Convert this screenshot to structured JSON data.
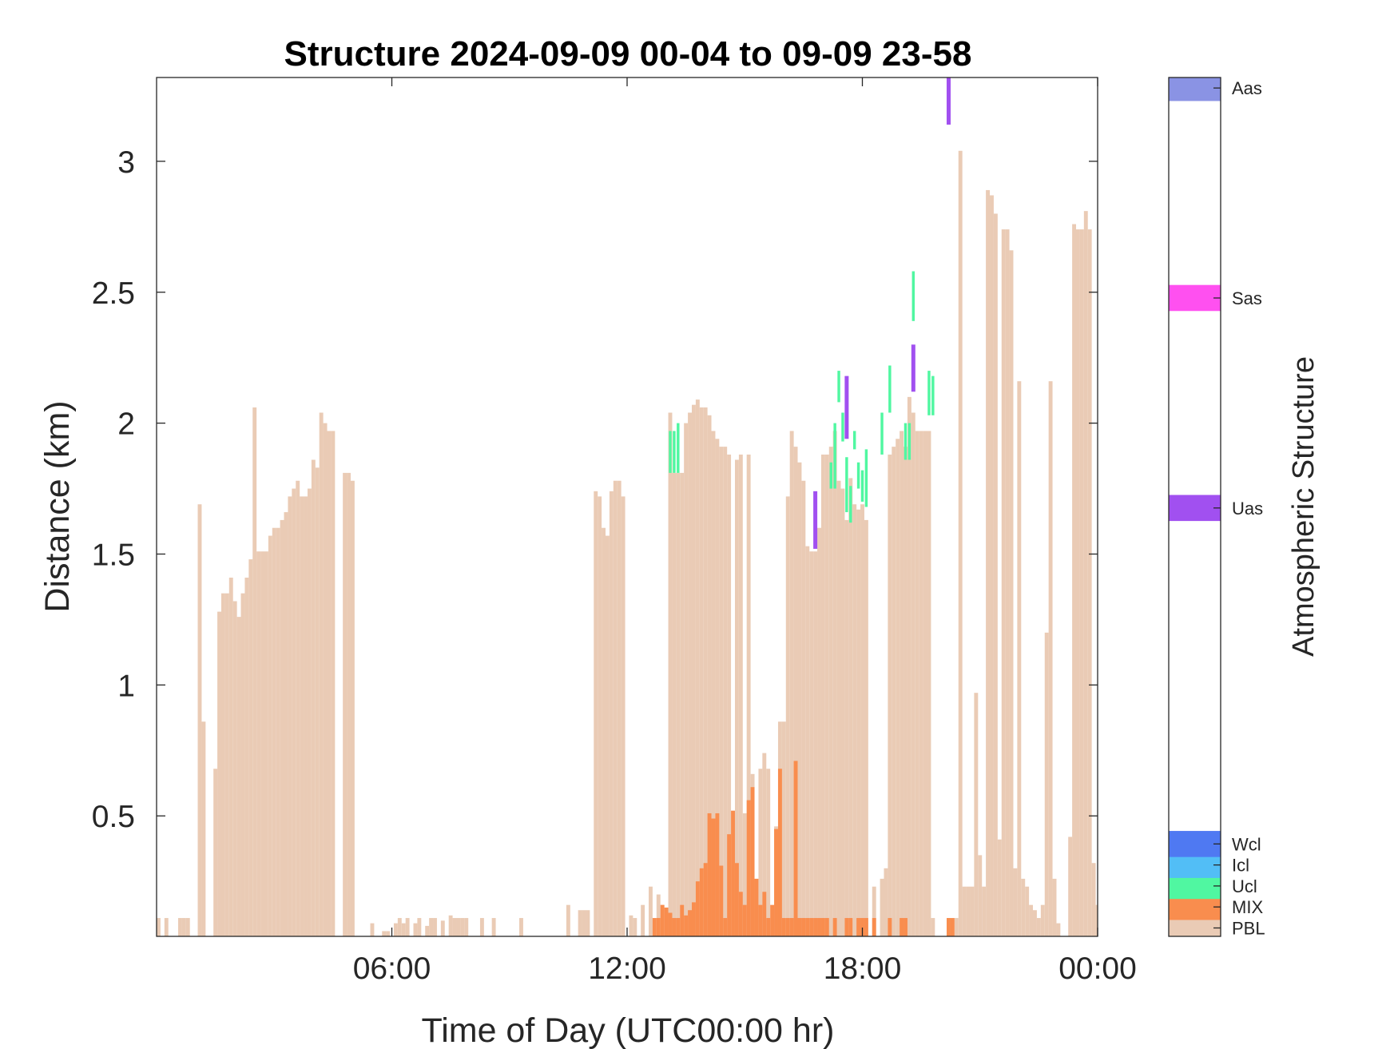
{
  "chart_data": {
    "type": "bar",
    "title": "Structure 2024-09-09 00-04 to 09-09 23-58",
    "xlabel": "Time of Day (UTC00:00 hr)",
    "ylabel": "Distance (km)",
    "x_unit": "hours since 00:00 UTC",
    "xlim": [
      0,
      24
    ],
    "ylim": [
      0.04,
      3.32
    ],
    "xticks": [
      {
        "value": 6,
        "label": "06:00"
      },
      {
        "value": 12,
        "label": "12:00"
      },
      {
        "value": 18,
        "label": "18:00"
      },
      {
        "value": 24,
        "label": "00:00"
      }
    ],
    "yticks": [
      {
        "value": 0.5,
        "label": "0.5"
      },
      {
        "value": 1,
        "label": "1"
      },
      {
        "value": 1.5,
        "label": "1.5"
      },
      {
        "value": 2,
        "label": "2"
      },
      {
        "value": 2.5,
        "label": "2.5"
      },
      {
        "value": 3,
        "label": "3"
      }
    ],
    "bin_hours": 0.1,
    "grid": false,
    "series": [
      {
        "name": "PBL",
        "color": "#EACBB5",
        "values": [
          [
            0.05,
            0.11
          ],
          [
            0.25,
            0.11
          ],
          [
            0.6,
            0.11
          ],
          [
            0.7,
            0.11
          ],
          [
            0.8,
            0.11
          ],
          [
            1.1,
            1.69
          ],
          [
            1.2,
            0.86
          ],
          [
            1.5,
            0.68
          ],
          [
            1.6,
            1.28
          ],
          [
            1.7,
            1.35
          ],
          [
            1.8,
            1.35
          ],
          [
            1.9,
            1.41
          ],
          [
            2.0,
            1.32
          ],
          [
            2.1,
            1.26
          ],
          [
            2.2,
            1.35
          ],
          [
            2.3,
            1.41
          ],
          [
            2.4,
            1.48
          ],
          [
            2.5,
            2.06
          ],
          [
            2.6,
            1.51
          ],
          [
            2.7,
            1.51
          ],
          [
            2.8,
            1.51
          ],
          [
            2.9,
            1.57
          ],
          [
            3.0,
            1.6
          ],
          [
            3.1,
            1.6
          ],
          [
            3.2,
            1.63
          ],
          [
            3.3,
            1.66
          ],
          [
            3.4,
            1.72
          ],
          [
            3.5,
            1.75
          ],
          [
            3.6,
            1.78
          ],
          [
            3.7,
            1.72
          ],
          [
            3.8,
            1.72
          ],
          [
            3.9,
            1.75
          ],
          [
            4.0,
            1.86
          ],
          [
            4.1,
            1.83
          ],
          [
            4.2,
            2.04
          ],
          [
            4.3,
            2.0
          ],
          [
            4.4,
            1.97
          ],
          [
            4.5,
            1.97
          ],
          [
            4.8,
            1.81
          ],
          [
            4.9,
            1.81
          ],
          [
            5.0,
            1.78
          ],
          [
            5.5,
            0.09
          ],
          [
            5.8,
            0.06
          ],
          [
            5.9,
            0.06
          ],
          [
            6.1,
            0.09
          ],
          [
            6.2,
            0.11
          ],
          [
            6.3,
            0.09
          ],
          [
            6.4,
            0.11
          ],
          [
            6.6,
            0.09
          ],
          [
            6.7,
            0.11
          ],
          [
            6.9,
            0.08
          ],
          [
            7.0,
            0.11
          ],
          [
            7.1,
            0.11
          ],
          [
            7.3,
            0.1
          ],
          [
            7.5,
            0.12
          ],
          [
            7.6,
            0.11
          ],
          [
            7.7,
            0.11
          ],
          [
            7.8,
            0.11
          ],
          [
            7.9,
            0.11
          ],
          [
            8.3,
            0.11
          ],
          [
            8.6,
            0.11
          ],
          [
            9.3,
            0.11
          ],
          [
            10.5,
            0.16
          ],
          [
            10.8,
            0.14
          ],
          [
            10.9,
            0.14
          ],
          [
            11.0,
            0.14
          ],
          [
            11.2,
            1.74
          ],
          [
            11.3,
            1.72
          ],
          [
            11.4,
            1.6
          ],
          [
            11.5,
            1.57
          ],
          [
            11.6,
            1.74
          ],
          [
            11.7,
            1.78
          ],
          [
            11.8,
            1.78
          ],
          [
            11.9,
            1.72
          ],
          [
            12.1,
            0.12
          ],
          [
            12.2,
            0.11
          ],
          [
            12.4,
            0.16
          ],
          [
            12.6,
            0.23
          ],
          [
            12.8,
            0.2
          ],
          [
            12.9,
            0.16
          ],
          [
            13.1,
            2.04
          ],
          [
            13.2,
            1.81
          ],
          [
            13.3,
            1.81
          ],
          [
            13.4,
            1.81
          ],
          [
            13.5,
            2.0
          ],
          [
            13.6,
            2.04
          ],
          [
            13.7,
            2.07
          ],
          [
            13.8,
            2.09
          ],
          [
            13.9,
            2.06
          ],
          [
            14.0,
            2.06
          ],
          [
            14.1,
            2.03
          ],
          [
            14.2,
            1.97
          ],
          [
            14.3,
            1.94
          ],
          [
            14.4,
            1.91
          ],
          [
            14.5,
            1.91
          ],
          [
            14.6,
            1.88
          ],
          [
            14.8,
            1.86
          ],
          [
            14.9,
            1.88
          ],
          [
            15.0,
            0.51
          ],
          [
            15.1,
            1.88
          ],
          [
            15.2,
            0.66
          ],
          [
            15.4,
            0.68
          ],
          [
            15.5,
            0.74
          ],
          [
            15.6,
            0.68
          ],
          [
            15.8,
            0.46
          ],
          [
            15.9,
            0.86
          ],
          [
            16.0,
            0.86
          ],
          [
            16.1,
            1.72
          ],
          [
            16.2,
            1.97
          ],
          [
            16.3,
            1.91
          ],
          [
            16.4,
            1.85
          ],
          [
            16.5,
            1.78
          ],
          [
            16.6,
            1.53
          ],
          [
            16.7,
            1.51
          ],
          [
            16.8,
            1.51
          ],
          [
            16.9,
            1.6
          ],
          [
            17.0,
            1.88
          ],
          [
            17.1,
            1.88
          ],
          [
            17.2,
            1.91
          ],
          [
            17.3,
            1.97
          ],
          [
            17.4,
            1.78
          ],
          [
            17.5,
            1.75
          ],
          [
            17.6,
            1.63
          ],
          [
            17.7,
            1.79
          ],
          [
            17.8,
            1.69
          ],
          [
            17.9,
            1.67
          ],
          [
            18.0,
            1.69
          ],
          [
            18.1,
            1.63
          ],
          [
            18.3,
            0.23
          ],
          [
            18.5,
            0.26
          ],
          [
            18.6,
            0.3
          ],
          [
            18.7,
            1.88
          ],
          [
            18.8,
            1.91
          ],
          [
            18.9,
            1.94
          ],
          [
            19.0,
            1.97
          ],
          [
            19.1,
            1.91
          ],
          [
            19.2,
            2.1
          ],
          [
            19.3,
            2.04
          ],
          [
            19.4,
            1.97
          ],
          [
            19.5,
            1.97
          ],
          [
            19.6,
            1.97
          ],
          [
            19.7,
            1.97
          ],
          [
            19.8,
            0.11
          ],
          [
            20.2,
            0.11
          ],
          [
            20.4,
            0.11
          ],
          [
            20.5,
            3.04
          ],
          [
            20.6,
            0.23
          ],
          [
            20.7,
            0.23
          ],
          [
            20.8,
            0.23
          ],
          [
            20.9,
            0.97
          ],
          [
            21.0,
            0.35
          ],
          [
            21.1,
            0.23
          ],
          [
            21.2,
            2.89
          ],
          [
            21.3,
            2.87
          ],
          [
            21.4,
            2.8
          ],
          [
            21.5,
            0.41
          ],
          [
            21.6,
            2.74
          ],
          [
            21.7,
            2.74
          ],
          [
            21.8,
            2.66
          ],
          [
            21.9,
            0.3
          ],
          [
            22.0,
            2.16
          ],
          [
            22.1,
            0.26
          ],
          [
            22.2,
            0.23
          ],
          [
            22.3,
            0.16
          ],
          [
            22.4,
            0.14
          ],
          [
            22.5,
            0.11
          ],
          [
            22.6,
            0.16
          ],
          [
            22.7,
            1.2
          ],
          [
            22.8,
            2.16
          ],
          [
            22.9,
            0.26
          ],
          [
            23.0,
            0.09
          ],
          [
            23.3,
            0.42
          ],
          [
            23.4,
            2.76
          ],
          [
            23.5,
            2.74
          ],
          [
            23.6,
            2.74
          ],
          [
            23.7,
            2.81
          ],
          [
            23.8,
            2.74
          ],
          [
            23.9,
            0.32
          ],
          [
            24.0,
            0.16
          ]
        ]
      },
      {
        "name": "MIX",
        "color": "#F98D4E",
        "values": [
          [
            12.7,
            0.11
          ],
          [
            12.8,
            0.11
          ],
          [
            12.9,
            0.16
          ],
          [
            13.0,
            0.15
          ],
          [
            13.1,
            0.13
          ],
          [
            13.2,
            0.11
          ],
          [
            13.3,
            0.11
          ],
          [
            13.4,
            0.16
          ],
          [
            13.5,
            0.12
          ],
          [
            13.6,
            0.14
          ],
          [
            13.7,
            0.17
          ],
          [
            13.8,
            0.25
          ],
          [
            13.9,
            0.3
          ],
          [
            14.0,
            0.32
          ],
          [
            14.1,
            0.51
          ],
          [
            14.2,
            0.49
          ],
          [
            14.3,
            0.51
          ],
          [
            14.4,
            0.31
          ],
          [
            14.5,
            0.11
          ],
          [
            14.6,
            0.43
          ],
          [
            14.7,
            0.52
          ],
          [
            14.8,
            0.32
          ],
          [
            14.9,
            0.21
          ],
          [
            15.0,
            0.16
          ],
          [
            15.1,
            0.56
          ],
          [
            15.2,
            0.61
          ],
          [
            15.3,
            0.26
          ],
          [
            15.4,
            0.16
          ],
          [
            15.5,
            0.21
          ],
          [
            15.6,
            0.11
          ],
          [
            15.7,
            0.16
          ],
          [
            15.8,
            0.45
          ],
          [
            15.9,
            0.68
          ],
          [
            16.0,
            0.11
          ],
          [
            16.1,
            0.11
          ],
          [
            16.2,
            0.11
          ],
          [
            16.3,
            0.71
          ],
          [
            16.4,
            0.11
          ],
          [
            16.5,
            0.11
          ],
          [
            16.6,
            0.11
          ],
          [
            16.7,
            0.11
          ],
          [
            16.8,
            0.11
          ],
          [
            16.9,
            0.11
          ],
          [
            17.0,
            0.11
          ],
          [
            17.1,
            0.11
          ],
          [
            17.3,
            0.11
          ],
          [
            17.6,
            0.11
          ],
          [
            17.7,
            0.11
          ],
          [
            17.9,
            0.11
          ],
          [
            18.0,
            0.11
          ],
          [
            18.1,
            0.11
          ],
          [
            18.3,
            0.11
          ],
          [
            18.7,
            0.11
          ],
          [
            19.0,
            0.11
          ],
          [
            19.1,
            0.11
          ],
          [
            20.2,
            0.11
          ],
          [
            20.3,
            0.11
          ]
        ]
      },
      {
        "name": "Ucl",
        "color": "#50F7A1",
        "ranges": [
          [
            13.1,
            1.81,
            1.97
          ],
          [
            13.2,
            1.81,
            1.97
          ],
          [
            13.3,
            1.81,
            2.0
          ],
          [
            17.2,
            1.75,
            1.85
          ],
          [
            17.3,
            1.75,
            2.0
          ],
          [
            17.4,
            2.08,
            2.2
          ],
          [
            17.5,
            1.93,
            2.04
          ],
          [
            17.6,
            1.66,
            1.87
          ],
          [
            17.7,
            1.62,
            1.76
          ],
          [
            17.8,
            1.9,
            1.97
          ],
          [
            17.9,
            1.75,
            1.85
          ],
          [
            18.0,
            1.7,
            1.82
          ],
          [
            18.1,
            1.68,
            1.9
          ],
          [
            18.5,
            1.88,
            2.04
          ],
          [
            18.7,
            2.04,
            2.22
          ],
          [
            19.1,
            1.86,
            2.0
          ],
          [
            19.2,
            1.86,
            2.0
          ],
          [
            19.3,
            2.39,
            2.58
          ],
          [
            19.7,
            2.03,
            2.2
          ],
          [
            19.8,
            2.03,
            2.18
          ]
        ]
      },
      {
        "name": "Uas",
        "color": "#A150F0",
        "ranges": [
          [
            16.8,
            1.52,
            1.74
          ],
          [
            17.6,
            1.94,
            2.18
          ],
          [
            19.3,
            2.12,
            2.3
          ],
          [
            20.2,
            3.14,
            3.32
          ]
        ]
      }
    ],
    "colorbar": {
      "title": "Atmospheric Structure",
      "entries": [
        {
          "label": "PBL",
          "color": "#EACBB5",
          "level": 0
        },
        {
          "label": "MIX",
          "color": "#F98D4E",
          "level": 1
        },
        {
          "label": "Ucl",
          "color": "#50F7A1",
          "level": 2
        },
        {
          "label": "Icl",
          "color": "#52BEF6",
          "level": 3
        },
        {
          "label": "Wcl",
          "color": "#4F79F2",
          "level": 4
        },
        {
          "label": "Uas",
          "color": "#A150F0",
          "level": 20
        },
        {
          "label": "Sas",
          "color": "#FF50F0",
          "level": 30
        },
        {
          "label": "Aas",
          "color": "#8A93E4",
          "level": 40
        }
      ],
      "range": [
        -0.4,
        40.5
      ]
    }
  }
}
